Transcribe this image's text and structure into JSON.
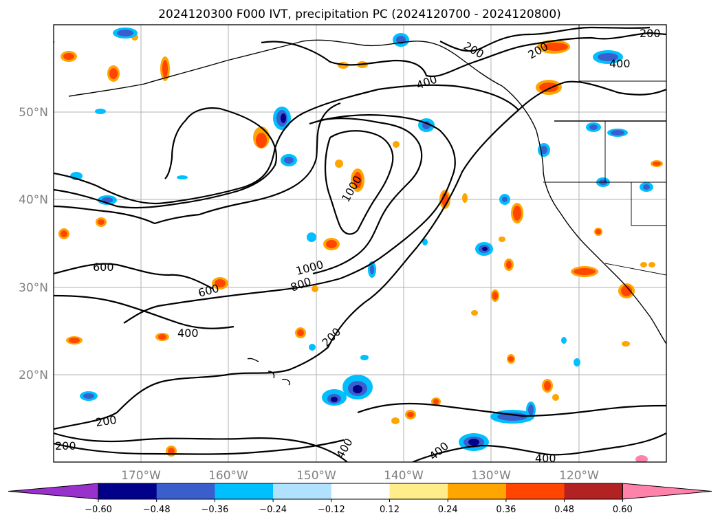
{
  "title": "2024120300 F000 IVT, precipitation PC (2024120700 - 2024120800)",
  "map": {
    "lon_range": [
      -180,
      -110
    ],
    "lat_range": [
      10,
      60
    ],
    "lat_labels": [
      "50°N",
      "40°N",
      "30°N",
      "20°N"
    ],
    "lon_labels": [
      "170°W",
      "160°W",
      "150°W",
      "140°W",
      "130°W",
      "120°W"
    ],
    "contour_labels": [
      "200",
      "200",
      "400",
      "600",
      "600",
      "400",
      "200",
      "800",
      "1000",
      "1000",
      "400",
      "200",
      "400",
      "200",
      "400",
      "400",
      "200",
      "200",
      "400"
    ]
  },
  "colorbar": {
    "colors": [
      "#9932cc",
      "#00008b",
      "#3a5fcd",
      "#00bfff",
      "#b0e2ff",
      "#ffffff",
      "#ffec8b",
      "#ffa500",
      "#ff4500",
      "#b22222",
      "#ff82ab"
    ],
    "tick_labels": [
      "−0.60",
      "−0.48",
      "−0.36",
      "−0.24",
      "−0.12",
      "0.12",
      "0.24",
      "0.36",
      "0.48",
      "0.60"
    ]
  }
}
